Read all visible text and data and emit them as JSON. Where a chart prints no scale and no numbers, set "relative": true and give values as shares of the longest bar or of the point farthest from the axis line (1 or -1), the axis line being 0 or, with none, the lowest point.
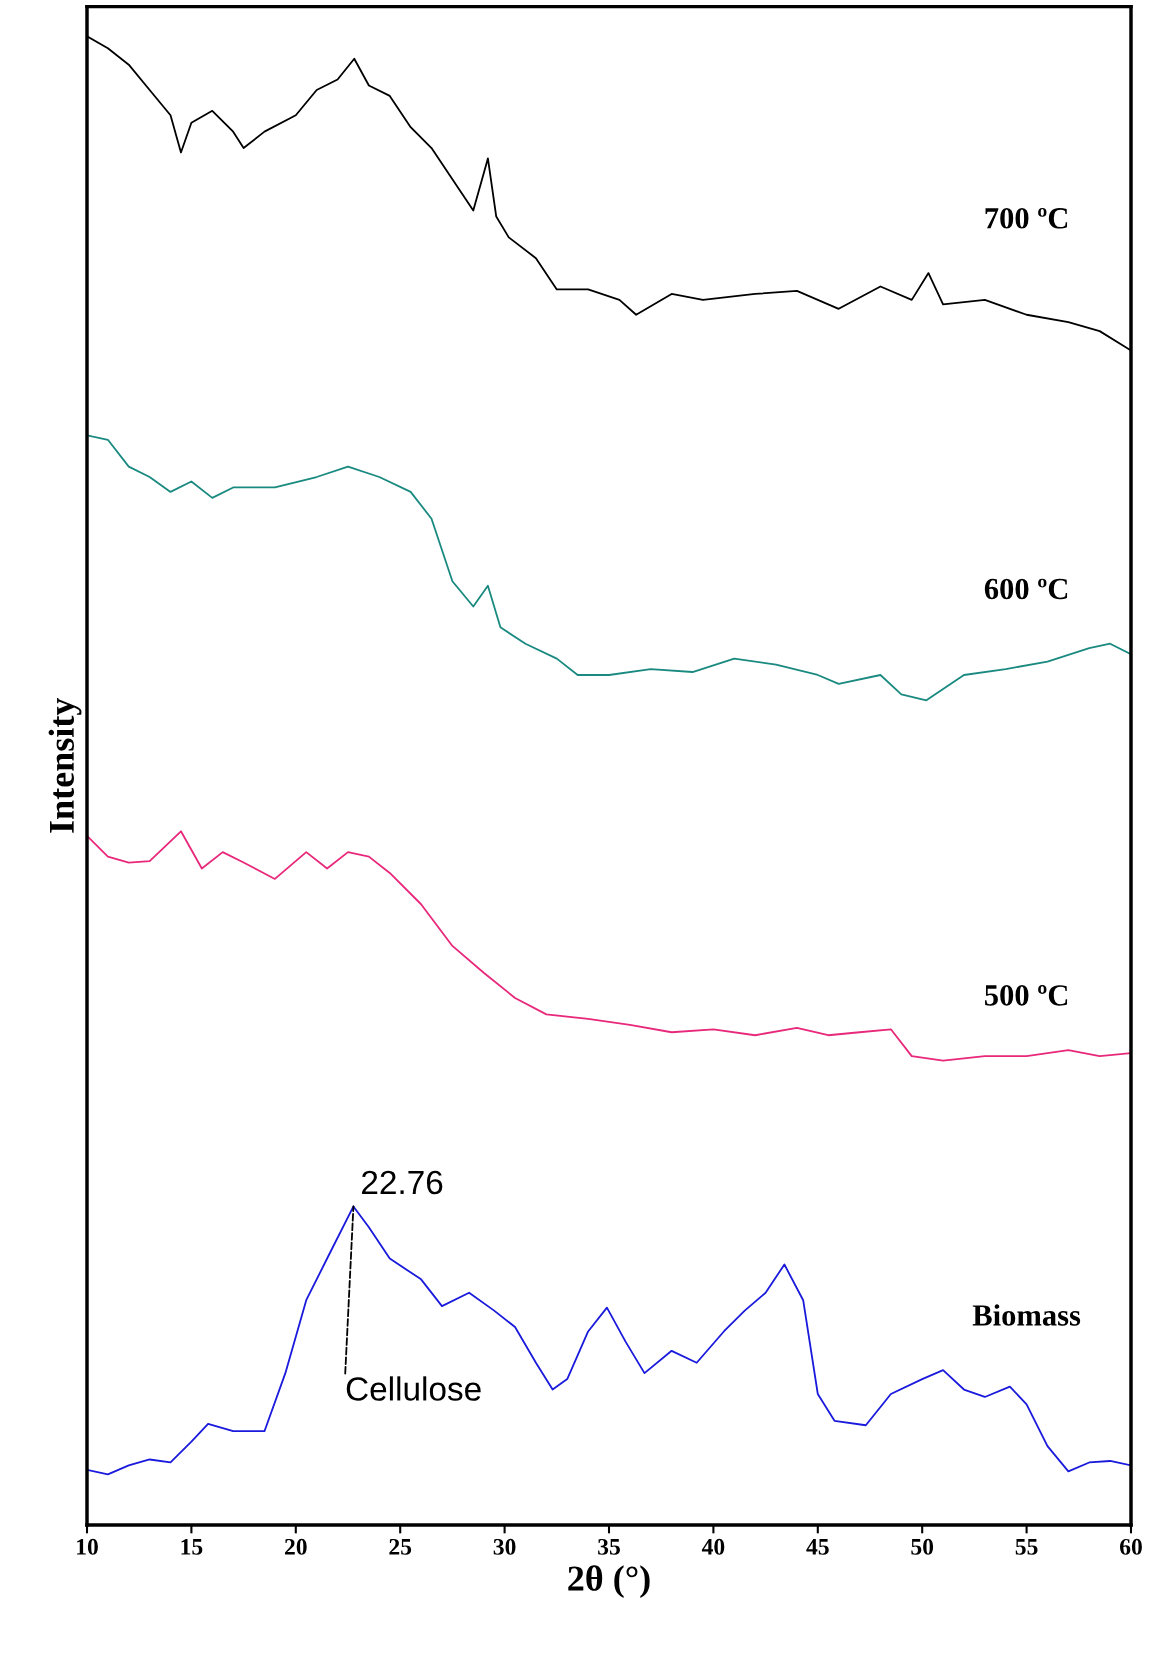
{
  "chart_data": {
    "type": "line",
    "relative": true,
    "xlabel": "2θ (°)",
    "ylabel": "Intensity",
    "xlim": [
      10,
      60
    ],
    "xticks": [
      10,
      15,
      20,
      25,
      30,
      35,
      40,
      45,
      50,
      55,
      60
    ],
    "tick_labels": "x",
    "grid": false,
    "legend": false,
    "marker": "none",
    "line_style": "solid",
    "series": [
      {
        "name": "700 ºC",
        "color": "#000000",
        "x": [
          10,
          11,
          12,
          13,
          14,
          14.5,
          15,
          16,
          17,
          17.5,
          18.5,
          20,
          21,
          22,
          22.8,
          23.5,
          24.5,
          25.5,
          26.5,
          27.5,
          28.5,
          29.2,
          29.6,
          30.2,
          31.5,
          32.5,
          34,
          35.5,
          36.3,
          38,
          39.5,
          42,
          44,
          46,
          48,
          49.5,
          50.3,
          51,
          53,
          55,
          57,
          58.5,
          60
        ],
        "values": [
          1.0,
          0.992,
          0.981,
          0.964,
          0.947,
          0.922,
          0.942,
          0.95,
          0.936,
          0.925,
          0.936,
          0.947,
          0.964,
          0.971,
          0.985,
          0.967,
          0.96,
          0.939,
          0.925,
          0.904,
          0.883,
          0.918,
          0.879,
          0.865,
          0.851,
          0.83,
          0.83,
          0.823,
          0.813,
          0.827,
          0.823,
          0.827,
          0.829,
          0.817,
          0.832,
          0.823,
          0.841,
          0.82,
          0.823,
          0.813,
          0.808,
          0.802,
          0.789
        ]
      },
      {
        "name": "600 ºC",
        "color": "#1a8a80",
        "x": [
          10,
          11,
          12,
          13,
          14,
          15,
          16,
          17,
          19,
          21,
          22.5,
          24,
          25.5,
          26.5,
          27.5,
          28.5,
          29.2,
          29.8,
          31,
          32.5,
          33.5,
          35,
          37,
          39,
          41,
          43,
          45,
          46,
          48,
          49,
          50.2,
          52,
          54,
          56,
          58,
          59,
          60
        ],
        "values": [
          0.732,
          0.729,
          0.711,
          0.704,
          0.694,
          0.701,
          0.69,
          0.697,
          0.697,
          0.704,
          0.711,
          0.704,
          0.694,
          0.676,
          0.634,
          0.617,
          0.631,
          0.603,
          0.592,
          0.582,
          0.571,
          0.571,
          0.575,
          0.573,
          0.582,
          0.578,
          0.571,
          0.565,
          0.571,
          0.558,
          0.554,
          0.571,
          0.575,
          0.58,
          0.589,
          0.592,
          0.585
        ]
      },
      {
        "name": "500 ºC",
        "color": "#e8287a",
        "x": [
          10,
          11,
          12,
          13,
          14.5,
          15.5,
          16.5,
          17.5,
          19,
          20.5,
          21.5,
          22.5,
          23.5,
          24.5,
          26,
          27.5,
          29,
          30.5,
          32,
          34,
          36,
          38,
          40,
          42,
          44,
          45.5,
          47,
          48.5,
          49.5,
          51,
          53,
          55,
          57,
          58.5,
          60
        ],
        "values": [
          0.463,
          0.449,
          0.445,
          0.446,
          0.466,
          0.441,
          0.452,
          0.445,
          0.434,
          0.452,
          0.441,
          0.452,
          0.449,
          0.438,
          0.417,
          0.389,
          0.371,
          0.354,
          0.343,
          0.34,
          0.336,
          0.331,
          0.333,
          0.329,
          0.334,
          0.329,
          0.331,
          0.333,
          0.315,
          0.312,
          0.315,
          0.315,
          0.319,
          0.315,
          0.317
        ]
      },
      {
        "name": "Biomass",
        "color": "#1a1adc",
        "x": [
          10,
          11,
          12,
          13,
          14,
          15,
          15.8,
          17,
          18.5,
          19.5,
          20.5,
          21.5,
          22.76,
          23.5,
          24.5,
          26,
          27,
          28.3,
          29.5,
          30.5,
          31.5,
          32.3,
          33,
          34,
          34.9,
          35.8,
          36.7,
          38,
          39.2,
          40.5,
          41.5,
          42.5,
          43.4,
          44.3,
          45,
          45.8,
          47.3,
          48.5,
          50,
          51,
          52,
          53,
          54.2,
          55,
          56,
          57,
          58,
          59,
          60
        ],
        "values": [
          0.037,
          0.034,
          0.04,
          0.044,
          0.042,
          0.056,
          0.068,
          0.063,
          0.063,
          0.102,
          0.151,
          0.179,
          0.214,
          0.2,
          0.179,
          0.165,
          0.147,
          0.156,
          0.144,
          0.133,
          0.109,
          0.091,
          0.098,
          0.13,
          0.146,
          0.123,
          0.102,
          0.117,
          0.109,
          0.13,
          0.144,
          0.156,
          0.175,
          0.151,
          0.088,
          0.07,
          0.067,
          0.088,
          0.098,
          0.104,
          0.091,
          0.086,
          0.093,
          0.081,
          0.053,
          0.036,
          0.042,
          0.043,
          0.04
        ]
      }
    ],
    "annotations": [
      {
        "text": "22.76",
        "x": 22.76,
        "y": 0.214
      },
      {
        "text": "Cellulose",
        "x": 22.76,
        "y": 0.214
      }
    ]
  }
}
